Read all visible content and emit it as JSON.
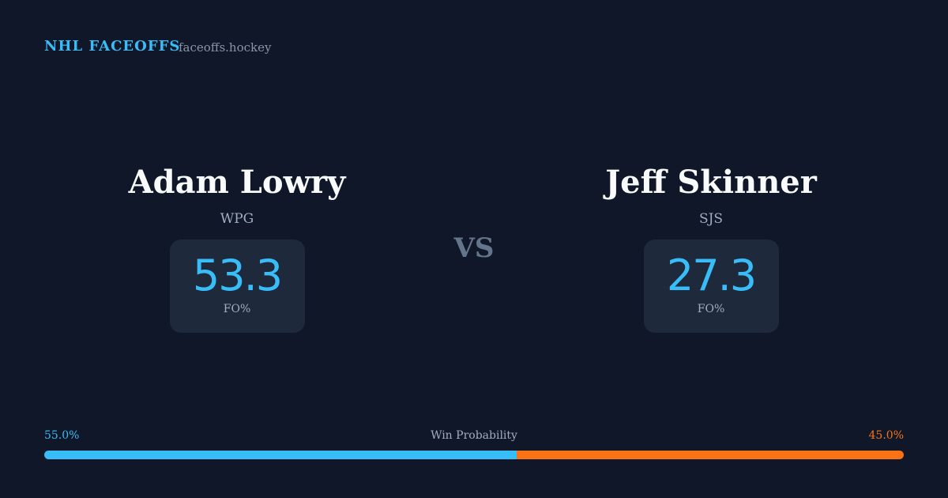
{
  "header": {
    "title": "NHL FACEOFFS",
    "site": "faceoffs.hockey"
  },
  "players": [
    {
      "name": "Adam Lowry",
      "team": "WPG",
      "value": 53.3,
      "stat_label": "FO%"
    },
    {
      "name": "Jeff Skinner",
      "team": "SJS",
      "value": 27.3,
      "stat_label": "FO%"
    }
  ],
  "vs": "VS",
  "win_probability": {
    "label": "Win Probability",
    "values": [
      55.0,
      45.0
    ],
    "value_labels": [
      "55.0%",
      "45.0%"
    ],
    "colors": [
      "#38bdf8",
      "#f97316"
    ]
  }
}
